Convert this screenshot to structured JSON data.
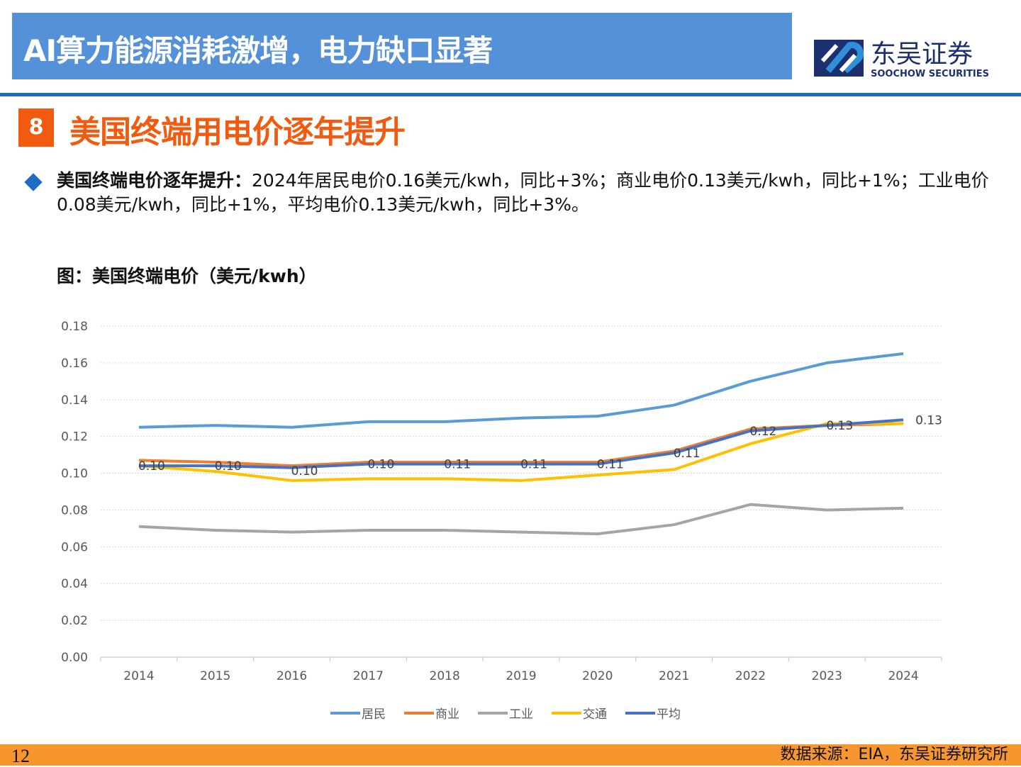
{
  "header": {
    "title": "AI算力能源消耗激增，电力缺口显著"
  },
  "logo": {
    "cn": "东吴证券",
    "en": "SOOCHOW SECURITIES"
  },
  "section": {
    "number": "8",
    "title": "美国终端用电价逐年提升"
  },
  "summary": {
    "bold": "美国终端电价逐年提升：",
    "text": "2024年居民电价0.16美元/kwh，同比+3%；商业电价0.13美元/kwh，同比+1%；工业电价0.08美元/kwh，同比+1%，平均电价0.13美元/kwh，同比+3%。"
  },
  "chart_title": "图：美国终端电价（美元/kwh）",
  "chart_data": {
    "type": "line",
    "categories": [
      "2014",
      "2015",
      "2016",
      "2017",
      "2018",
      "2019",
      "2020",
      "2021",
      "2022",
      "2023",
      "2024"
    ],
    "ylim": [
      0,
      0.18
    ],
    "yticks": [
      "0.00",
      "0.02",
      "0.04",
      "0.06",
      "0.08",
      "0.10",
      "0.12",
      "0.14",
      "0.16",
      "0.18"
    ],
    "grid": true,
    "legend_position": "bottom",
    "series": [
      {
        "name": "居民",
        "color": "#5b9bd5",
        "values": [
          0.125,
          0.126,
          0.125,
          0.128,
          0.128,
          0.13,
          0.131,
          0.137,
          0.15,
          0.16,
          0.165
        ]
      },
      {
        "name": "商业",
        "color": "#ed7d31",
        "values": [
          0.107,
          0.106,
          0.104,
          0.106,
          0.106,
          0.106,
          0.106,
          0.112,
          0.124,
          0.126,
          0.127
        ]
      },
      {
        "name": "工业",
        "color": "#a5a5a5",
        "values": [
          0.071,
          0.069,
          0.068,
          0.069,
          0.069,
          0.068,
          0.067,
          0.072,
          0.083,
          0.08,
          0.081
        ]
      },
      {
        "name": "交通",
        "color": "#ffc000",
        "values": [
          0.104,
          0.101,
          0.096,
          0.097,
          0.097,
          0.096,
          0.099,
          0.102,
          0.116,
          0.127,
          0.127
        ]
      },
      {
        "name": "平均",
        "color": "#4472c4",
        "values": [
          0.104,
          0.104,
          0.103,
          0.105,
          0.105,
          0.105,
          0.105,
          0.111,
          0.123,
          0.126,
          0.129
        ],
        "data_labels": [
          "0.10",
          "0.10",
          "0.10",
          "0.10",
          "0.11",
          "0.11",
          "0.11",
          "0.11",
          "0.12",
          "0.13",
          "0.13"
        ]
      }
    ]
  },
  "footer": {
    "page": "12",
    "source": "数据来源：EIA，东吴证券研究所"
  }
}
